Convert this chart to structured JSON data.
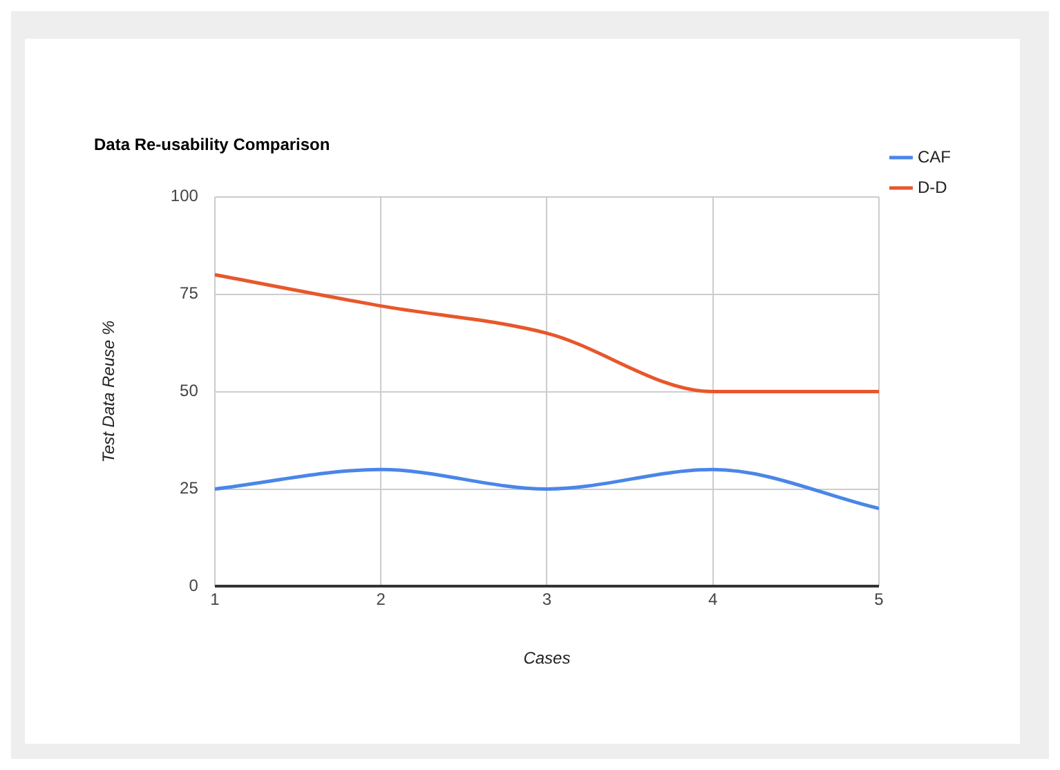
{
  "chart_data": {
    "type": "line",
    "title": "Data Re-usability Comparison",
    "xlabel": "Cases",
    "ylabel": "Test Data Reuse %",
    "x": [
      1,
      2,
      3,
      4,
      5
    ],
    "xlim": [
      1,
      5
    ],
    "xticks": [
      1,
      2,
      3,
      4,
      5
    ],
    "ylim": [
      0,
      100
    ],
    "yticks": [
      0,
      25,
      50,
      75,
      100
    ],
    "series": [
      {
        "name": "CAF",
        "color": "#4a86e8",
        "values": [
          25,
          30,
          25,
          30,
          20
        ]
      },
      {
        "name": "D-D",
        "color": "#e8572b",
        "values": [
          80,
          72,
          65,
          50,
          50
        ]
      }
    ],
    "grid": true,
    "legend": "top right",
    "marker": "none",
    "line_style": "solid"
  }
}
